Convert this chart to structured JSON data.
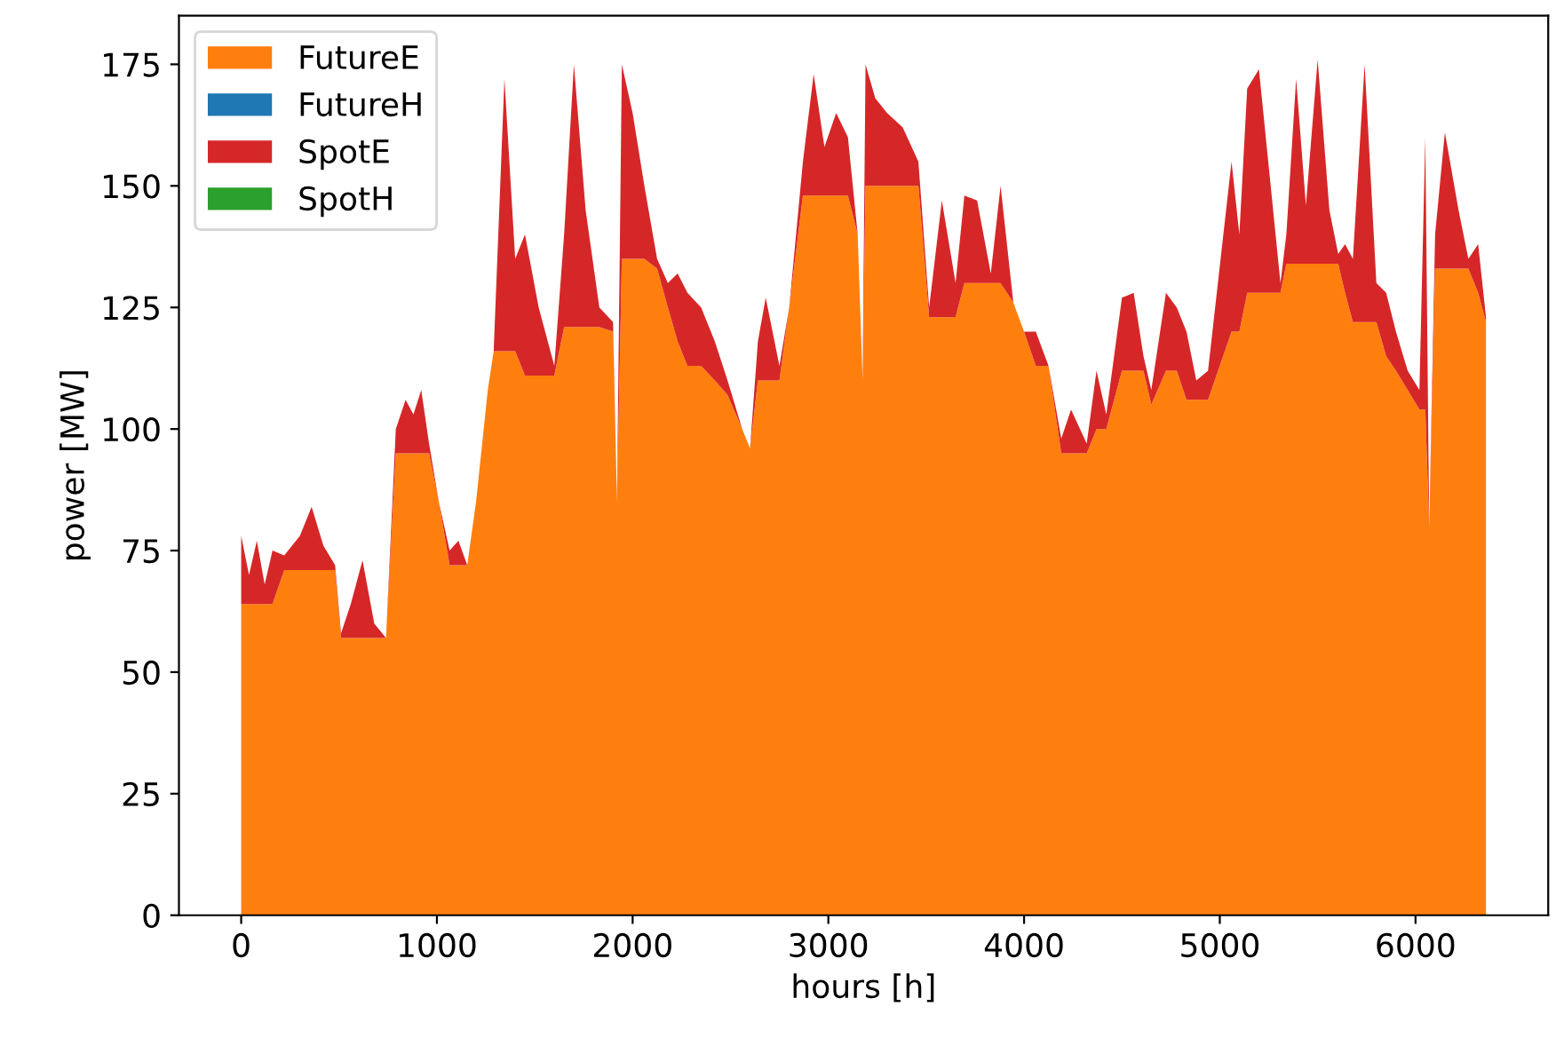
{
  "chart_data": {
    "type": "area",
    "stacked": true,
    "xlabel": "hours [h]",
    "ylabel": "power [MW]",
    "x": [
      0,
      40,
      80,
      120,
      160,
      220,
      300,
      360,
      420,
      480,
      510,
      560,
      620,
      680,
      740,
      790,
      840,
      880,
      920,
      960,
      1010,
      1065,
      1110,
      1155,
      1200,
      1260,
      1290,
      1345,
      1400,
      1450,
      1520,
      1600,
      1650,
      1700,
      1760,
      1830,
      1900,
      1920,
      1945,
      2000,
      2060,
      2125,
      2180,
      2230,
      2280,
      2350,
      2420,
      2485,
      2560,
      2600,
      2640,
      2680,
      2750,
      2800,
      2870,
      2925,
      2980,
      3040,
      3100,
      3150,
      3175,
      3190,
      3240,
      3300,
      3380,
      3460,
      3515,
      3580,
      3650,
      3695,
      3760,
      3830,
      3880,
      3945,
      4000,
      4060,
      4125,
      4190,
      4240,
      4320,
      4370,
      4420,
      4500,
      4560,
      4610,
      4650,
      4725,
      4780,
      4830,
      4880,
      4940,
      5060,
      5100,
      5140,
      5200,
      5260,
      5310,
      5340,
      5390,
      5440,
      5500,
      5560,
      5605,
      5640,
      5680,
      5740,
      5800,
      5850,
      5900,
      5960,
      6020,
      6050,
      6070,
      6100,
      6150,
      6220,
      6270,
      6320,
      6360
    ],
    "series": [
      {
        "name": "FutureE",
        "color": "#ff7f0e",
        "values": [
          64,
          64,
          64,
          64,
          64,
          71,
          71,
          71,
          71,
          71,
          57,
          57,
          57,
          57,
          57,
          95,
          95,
          95,
          95,
          95,
          85,
          72,
          72,
          72,
          85,
          108,
          116,
          116,
          116,
          111,
          111,
          111,
          121,
          121,
          121,
          121,
          120,
          85,
          135,
          135,
          135,
          133,
          125,
          118,
          113,
          113,
          110,
          107,
          100,
          96,
          110,
          110,
          110,
          125,
          148,
          148,
          148,
          148,
          148,
          140,
          110,
          150,
          150,
          150,
          150,
          150,
          123,
          123,
          123,
          130,
          130,
          130,
          130,
          126,
          120,
          113,
          113,
          95,
          95,
          95,
          100,
          100,
          112,
          112,
          112,
          105,
          112,
          112,
          106,
          106,
          106,
          120,
          120,
          128,
          128,
          128,
          128,
          134,
          134,
          134,
          134,
          134,
          134,
          128,
          122,
          122,
          122,
          115,
          112,
          108,
          104,
          104,
          80,
          133,
          133,
          133,
          133,
          128,
          122
        ]
      },
      {
        "name": "FutureH",
        "color": "#1f77b4",
        "values": [
          null,
          null,
          null,
          null,
          null,
          null,
          null,
          null,
          null,
          null,
          null,
          null,
          null,
          null,
          null,
          null,
          null,
          null,
          null,
          null,
          null,
          null,
          null,
          null,
          null,
          null,
          null,
          null,
          null,
          null,
          null,
          null,
          null,
          null,
          null,
          null,
          null,
          null,
          null,
          null,
          null,
          null,
          null,
          null,
          null,
          null,
          null,
          null,
          null,
          null,
          null,
          null,
          null,
          null,
          null,
          null,
          null,
          null,
          null,
          null,
          null,
          null,
          null,
          null,
          null,
          null,
          null,
          null,
          null,
          null,
          null,
          null,
          null,
          null,
          null,
          null,
          null,
          null,
          null,
          null,
          null,
          null,
          null,
          null,
          null,
          null,
          null,
          null,
          null,
          null,
          null,
          null,
          null,
          null,
          null,
          null,
          null,
          null,
          null,
          null,
          null,
          null,
          null,
          null,
          null,
          null,
          null,
          null,
          null,
          null,
          null,
          null,
          null,
          null,
          null,
          null,
          null,
          null,
          null
        ]
      },
      {
        "name": "SpotE",
        "color": "#d62728",
        "values": [
          14,
          6,
          13,
          4,
          11,
          3,
          7,
          13,
          5,
          1,
          1,
          7,
          16,
          3,
          0,
          5,
          11,
          8,
          13,
          2,
          0,
          3,
          5,
          0,
          0,
          0,
          0,
          56,
          19,
          29,
          14,
          2,
          19,
          54,
          24,
          4,
          2,
          0,
          40,
          30,
          15,
          2,
          5,
          14,
          15,
          12,
          8,
          3,
          0,
          0,
          8,
          17,
          3,
          0,
          7,
          25,
          10,
          17,
          12,
          0,
          0,
          25,
          18,
          15,
          12,
          5,
          2,
          24,
          7,
          18,
          17,
          2,
          20,
          0,
          0,
          7,
          0,
          3,
          9,
          2,
          12,
          3,
          15,
          16,
          3,
          3,
          16,
          13,
          14,
          4,
          6,
          35,
          20,
          42,
          46,
          22,
          2,
          6,
          38,
          12,
          42,
          11,
          2,
          10,
          13,
          53,
          8,
          13,
          8,
          4,
          4,
          56,
          0,
          7,
          28,
          12,
          2,
          10,
          1
        ]
      },
      {
        "name": "SpotH",
        "color": "#2ca02c",
        "values": [
          null,
          null,
          null,
          null,
          null,
          null,
          null,
          null,
          null,
          null,
          null,
          null,
          null,
          null,
          null,
          null,
          null,
          null,
          null,
          null,
          null,
          null,
          null,
          null,
          null,
          null,
          null,
          null,
          null,
          null,
          null,
          null,
          null,
          null,
          null,
          null,
          null,
          null,
          null,
          null,
          null,
          null,
          null,
          null,
          null,
          null,
          null,
          null,
          null,
          null,
          null,
          null,
          null,
          null,
          null,
          null,
          null,
          null,
          null,
          null,
          null,
          null,
          null,
          null,
          null,
          null,
          null,
          null,
          null,
          null,
          null,
          null,
          null,
          null,
          null,
          null,
          null,
          null,
          null,
          null,
          null,
          null,
          null,
          null,
          null,
          null,
          null,
          null,
          null,
          null,
          null,
          null,
          null,
          null,
          null,
          null,
          null,
          null,
          null,
          null,
          null,
          null,
          null,
          null,
          null,
          null,
          null,
          null,
          null,
          null,
          null,
          null,
          null,
          null,
          null,
          null,
          null,
          null,
          null
        ]
      }
    ],
    "xlim": [
      -318,
      6678
    ],
    "ylim": [
      0,
      185
    ],
    "xticks": [
      0,
      1000,
      2000,
      3000,
      4000,
      5000,
      6000
    ],
    "yticks": [
      0,
      25,
      50,
      75,
      100,
      125,
      150,
      175
    ],
    "legend": "top left",
    "grid": false
  }
}
